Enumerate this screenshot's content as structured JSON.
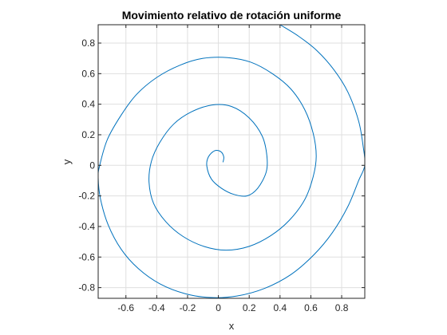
{
  "chart_data": {
    "type": "line",
    "title": "Movimiento relativo de rotación uniforme",
    "xlabel": "x",
    "ylabel": "y",
    "xlim": [
      -0.78,
      0.95
    ],
    "ylim": [
      -0.87,
      0.92
    ],
    "xticks": [
      -0.6,
      -0.4,
      -0.2,
      0,
      0.2,
      0.4,
      0.6,
      0.8
    ],
    "xtick_labels": [
      "-0.6",
      "-0.4",
      "-0.2",
      "0",
      "0.2",
      "0.4",
      "0.6",
      "0.8"
    ],
    "yticks": [
      -0.8,
      -0.6,
      -0.4,
      -0.2,
      0,
      0.2,
      0.4,
      0.6,
      0.8
    ],
    "ytick_labels": [
      "-0.8",
      "-0.6",
      "-0.4",
      "-0.2",
      "0",
      "0.2",
      "0.4",
      "0.6",
      "0.8"
    ],
    "grid": true,
    "line_color": "#0072BD",
    "series": [
      {
        "points": [
          [
            0.03,
            0.02
          ],
          [
            0.035,
            0.055
          ],
          [
            0.015,
            0.09
          ],
          [
            -0.025,
            0.095
          ],
          [
            -0.065,
            0.055
          ],
          [
            -0.075,
            -0.005
          ],
          [
            -0.045,
            -0.09
          ],
          [
            0.02,
            -0.15
          ],
          [
            0.1,
            -0.19
          ],
          [
            0.185,
            -0.2
          ],
          [
            0.255,
            -0.15
          ],
          [
            0.31,
            -0.045
          ],
          [
            0.315,
            0.06
          ],
          [
            0.285,
            0.19
          ],
          [
            0.2,
            0.31
          ],
          [
            0.085,
            0.385
          ],
          [
            -0.04,
            0.395
          ],
          [
            -0.175,
            0.35
          ],
          [
            -0.29,
            0.27
          ],
          [
            -0.38,
            0.15
          ],
          [
            -0.435,
            0.025
          ],
          [
            -0.45,
            -0.11
          ],
          [
            -0.42,
            -0.25
          ],
          [
            -0.34,
            -0.37
          ],
          [
            -0.23,
            -0.465
          ],
          [
            -0.095,
            -0.53
          ],
          [
            0.05,
            -0.555
          ],
          [
            0.2,
            -0.53
          ],
          [
            0.34,
            -0.46
          ],
          [
            0.46,
            -0.36
          ],
          [
            0.56,
            -0.225
          ],
          [
            0.615,
            -0.075
          ],
          [
            0.635,
            0.06
          ],
          [
            0.615,
            0.21
          ],
          [
            0.56,
            0.365
          ],
          [
            0.47,
            0.5
          ],
          [
            0.35,
            0.6
          ],
          [
            0.21,
            0.675
          ],
          [
            0.06,
            0.705
          ],
          [
            -0.1,
            0.7
          ],
          [
            -0.25,
            0.655
          ],
          [
            -0.4,
            0.575
          ],
          [
            -0.53,
            0.465
          ],
          [
            -0.63,
            0.33
          ],
          [
            -0.72,
            0.17
          ],
          [
            -0.77,
            0.0
          ],
          [
            -0.78,
            -0.08
          ],
          [
            -0.765,
            -0.22
          ],
          [
            -0.715,
            -0.39
          ],
          [
            -0.63,
            -0.55
          ],
          [
            -0.52,
            -0.675
          ],
          [
            -0.38,
            -0.775
          ],
          [
            -0.215,
            -0.84
          ],
          [
            -0.05,
            -0.865
          ],
          [
            0.12,
            -0.855
          ],
          [
            0.3,
            -0.805
          ],
          [
            0.47,
            -0.715
          ],
          [
            0.62,
            -0.585
          ],
          [
            0.74,
            -0.44
          ],
          [
            0.84,
            -0.27
          ],
          [
            0.91,
            -0.1
          ],
          [
            0.95,
            0.0
          ],
          [
            0.94,
            0.12
          ],
          [
            0.91,
            0.29
          ],
          [
            0.84,
            0.48
          ],
          [
            0.75,
            0.625
          ],
          [
            0.64,
            0.75
          ],
          [
            0.52,
            0.845
          ],
          [
            0.4,
            0.92
          ]
        ]
      }
    ]
  }
}
